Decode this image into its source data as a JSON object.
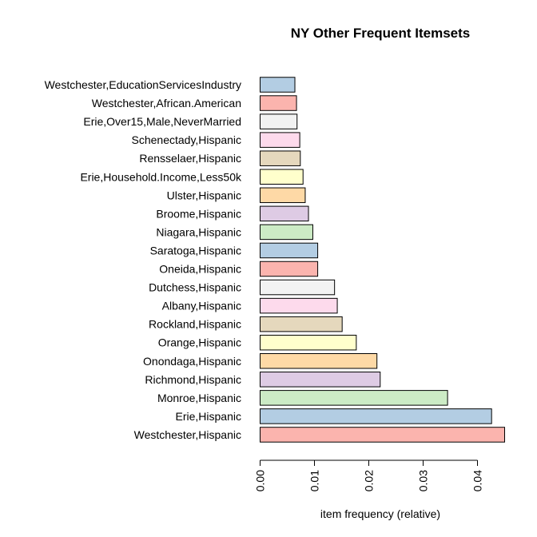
{
  "chart_data": {
    "type": "bar",
    "orientation": "horizontal",
    "title": "NY Other Frequent Itemsets",
    "xlabel": "item frequency (relative)",
    "ylabel": "",
    "xlim": [
      0,
      0.045
    ],
    "xticks": [
      0.0,
      0.01,
      0.02,
      0.03,
      0.04
    ],
    "xtick_labels": [
      "0.00",
      "0.01",
      "0.02",
      "0.03",
      "0.04"
    ],
    "grid": false,
    "categories": [
      "Westchester,EducationServicesIndustry",
      "Westchester,African.American",
      "Erie,Over15,Male,NeverMarried",
      "Schenectady,Hispanic",
      "Rensselaer,Hispanic",
      "Erie,Household.Income,Less50k",
      "Ulster,Hispanic",
      "Broome,Hispanic",
      "Niagara,Hispanic",
      "Saratoga,Hispanic",
      "Oneida,Hispanic",
      "Dutchess,Hispanic",
      "Albany,Hispanic",
      "Rockland,Hispanic",
      "Orange,Hispanic",
      "Onondaga,Hispanic",
      "Richmond,Hispanic",
      "Monroe,Hispanic",
      "Erie,Hispanic",
      "Westchester,Hispanic"
    ],
    "values": [
      0.0064,
      0.0067,
      0.0068,
      0.0073,
      0.0074,
      0.0079,
      0.0083,
      0.0089,
      0.0097,
      0.0106,
      0.0106,
      0.0137,
      0.0142,
      0.0151,
      0.0177,
      0.0215,
      0.0221,
      0.0345,
      0.0426,
      0.045
    ],
    "colors": [
      "#B3CDE3",
      "#FBB4AE",
      "#F2F2F2",
      "#FDDAEC",
      "#E5D8BD",
      "#FFFFCC",
      "#FED9A6",
      "#DECBE4",
      "#CCEBC5",
      "#B3CDE3",
      "#FBB4AE",
      "#F2F2F2",
      "#FDDAEC",
      "#E5D8BD",
      "#FFFFCC",
      "#FED9A6",
      "#DECBE4",
      "#CCEBC5",
      "#B3CDE3",
      "#FBB4AE"
    ]
  }
}
